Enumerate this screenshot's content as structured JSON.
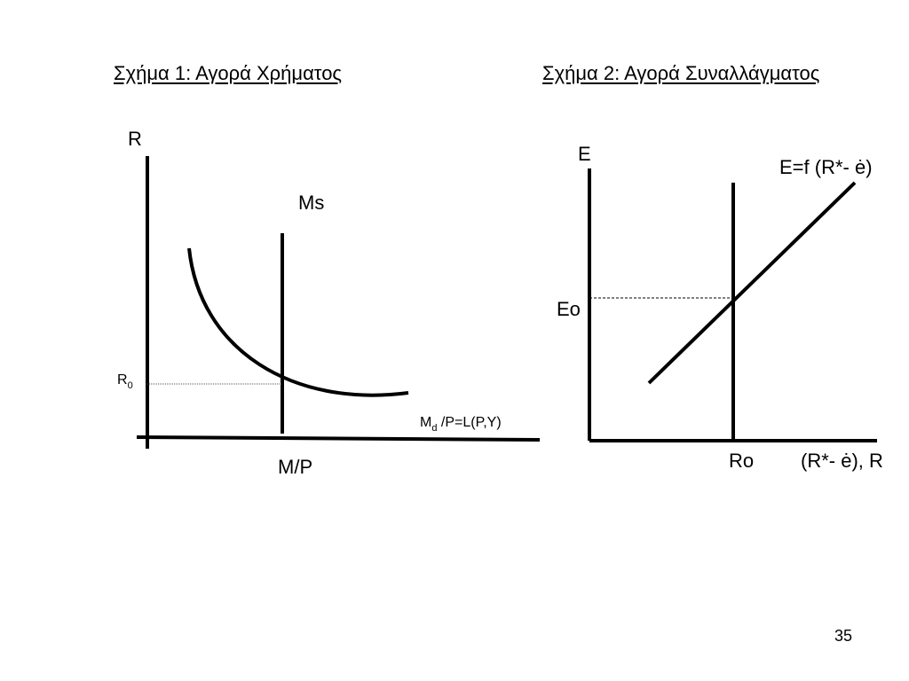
{
  "slide": {
    "page_number": "35"
  },
  "figure1": {
    "title": "Σχήμα 1: Αγορά Χρήματος",
    "y_axis_label": "R",
    "x_axis_label": "M/P",
    "supply_label": "Ms",
    "equilibrium_label_base": "R",
    "equilibrium_label_sub": "0",
    "demand_label_base": "M",
    "demand_label_sub": "d",
    "demand_label_rest": " /P=L(P,Y)"
  },
  "figure2": {
    "title": "Σχήμα 2: Αγορά Συναλλάγματος",
    "y_axis_label": "E",
    "x_axis_label": "(R*- ė), R",
    "curve_label": "E=f (R*- ė)",
    "equilibrium_y_label": "Eo",
    "equilibrium_x_label": "Ro"
  }
}
